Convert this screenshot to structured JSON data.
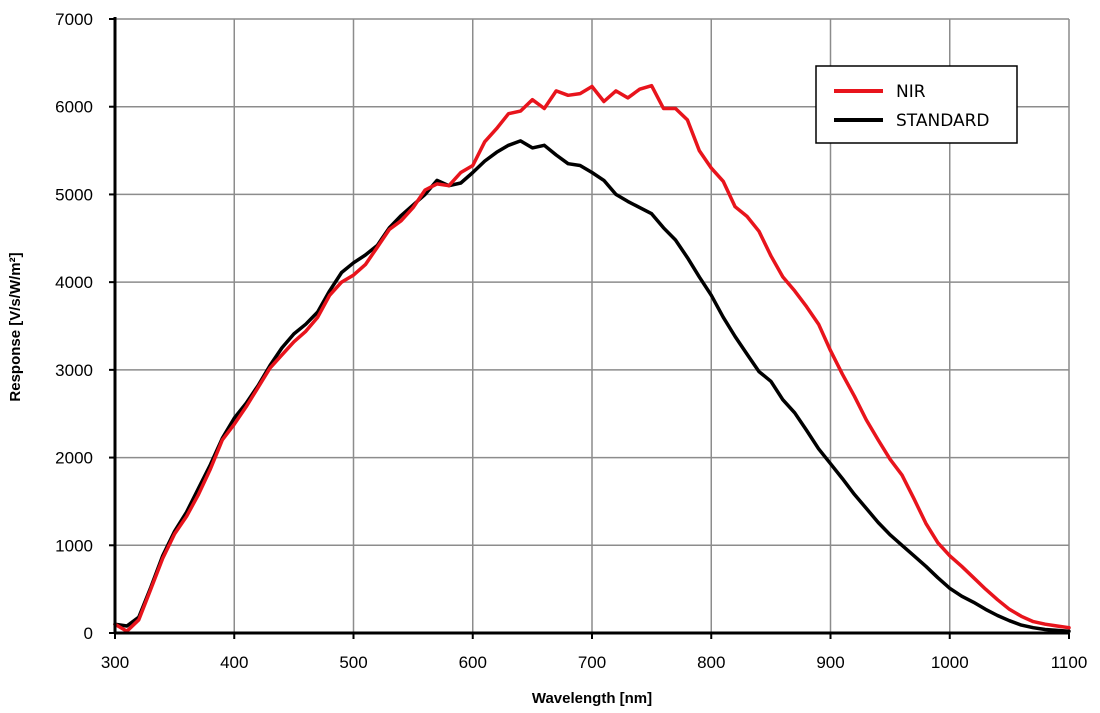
{
  "chart_data": {
    "type": "line",
    "xlabel": "Wavelength [nm]",
    "ylabel": "Response [V/s/W/m²]",
    "xlim": [
      300,
      1100
    ],
    "ylim": [
      0,
      7000
    ],
    "xticks": [
      300,
      400,
      500,
      600,
      700,
      800,
      900,
      1000,
      1100
    ],
    "yticks": [
      0,
      1000,
      2000,
      3000,
      4000,
      5000,
      6000,
      7000
    ],
    "grid": true,
    "legend_position": "top-right",
    "series": [
      {
        "name": "NIR",
        "color": "#e8141c",
        "x": [
          300,
          310,
          320,
          330,
          340,
          350,
          360,
          370,
          380,
          390,
          400,
          410,
          420,
          430,
          440,
          450,
          460,
          470,
          480,
          490,
          500,
          510,
          520,
          530,
          540,
          550,
          560,
          570,
          580,
          590,
          600,
          610,
          620,
          630,
          640,
          650,
          660,
          670,
          680,
          690,
          700,
          710,
          720,
          730,
          740,
          750,
          760,
          770,
          780,
          790,
          800,
          810,
          820,
          830,
          840,
          850,
          860,
          870,
          880,
          890,
          900,
          910,
          920,
          930,
          940,
          950,
          960,
          970,
          980,
          990,
          1000,
          1010,
          1020,
          1030,
          1040,
          1050,
          1060,
          1070,
          1080,
          1090,
          1100
        ],
        "y": [
          100,
          20,
          150,
          500,
          850,
          1130,
          1330,
          1580,
          1870,
          2200,
          2380,
          2580,
          2800,
          3020,
          3170,
          3320,
          3440,
          3600,
          3850,
          4000,
          4080,
          4200,
          4400,
          4600,
          4700,
          4850,
          5050,
          5120,
          5100,
          5250,
          5330,
          5600,
          5750,
          5920,
          5950,
          6080,
          5980,
          6180,
          6130,
          6150,
          6230,
          6060,
          6180,
          6100,
          6200,
          6240,
          5980,
          5980,
          5850,
          5500,
          5300,
          5150,
          4860,
          4750,
          4580,
          4300,
          4060,
          3900,
          3720,
          3520,
          3220,
          2950,
          2700,
          2430,
          2200,
          1980,
          1800,
          1530,
          1250,
          1030,
          880,
          760,
          630,
          500,
          380,
          270,
          190,
          130,
          100,
          80,
          60
        ]
      },
      {
        "name": "STANDARD",
        "color": "#000000",
        "x": [
          300,
          310,
          320,
          330,
          340,
          350,
          360,
          370,
          380,
          390,
          400,
          410,
          420,
          430,
          440,
          450,
          460,
          470,
          480,
          490,
          500,
          510,
          520,
          530,
          540,
          550,
          560,
          570,
          580,
          590,
          600,
          610,
          620,
          630,
          640,
          650,
          660,
          670,
          680,
          690,
          700,
          710,
          720,
          730,
          740,
          750,
          760,
          770,
          780,
          790,
          800,
          810,
          820,
          830,
          840,
          850,
          860,
          870,
          880,
          890,
          900,
          910,
          920,
          930,
          940,
          950,
          960,
          970,
          980,
          990,
          1000,
          1010,
          1020,
          1030,
          1040,
          1050,
          1060,
          1070,
          1080,
          1090,
          1100
        ],
        "y": [
          100,
          80,
          180,
          520,
          880,
          1160,
          1380,
          1650,
          1920,
          2220,
          2450,
          2620,
          2820,
          3050,
          3250,
          3410,
          3520,
          3660,
          3900,
          4110,
          4220,
          4310,
          4420,
          4620,
          4760,
          4880,
          5000,
          5160,
          5100,
          5130,
          5250,
          5380,
          5480,
          5560,
          5610,
          5530,
          5560,
          5450,
          5350,
          5330,
          5250,
          5160,
          5000,
          4920,
          4850,
          4780,
          4620,
          4480,
          4280,
          4060,
          3850,
          3600,
          3380,
          3180,
          2980,
          2870,
          2660,
          2510,
          2310,
          2100,
          1930,
          1760,
          1580,
          1420,
          1260,
          1120,
          1000,
          880,
          760,
          630,
          510,
          420,
          350,
          270,
          200,
          140,
          90,
          60,
          40,
          30,
          20
        ]
      }
    ]
  }
}
